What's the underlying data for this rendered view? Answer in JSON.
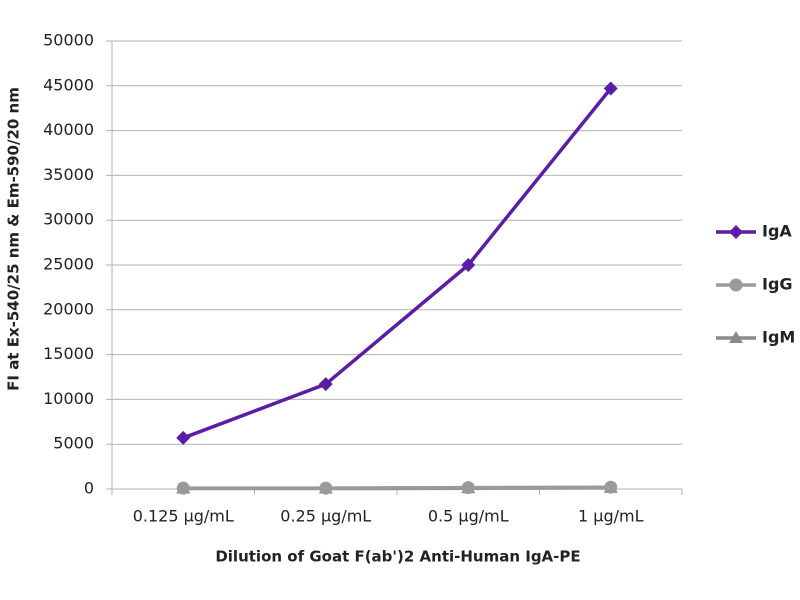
{
  "chart_data": {
    "type": "line",
    "y_label": "FI at Ex-540/25 nm & Em-590/20 nm",
    "x_label": "Dilution of Goat F(ab')2 Anti-Human IgA-PE",
    "categories": [
      "0.125 µg/mL",
      "0.25 µg/mL",
      "0.5 µg/mL",
      "1 µg/mL"
    ],
    "series": [
      {
        "name": "IgA",
        "color": "#5a1ea6",
        "marker": "diamond",
        "values": [
          5700,
          11700,
          25000,
          44700
        ]
      },
      {
        "name": "IgG",
        "color": "#9a9a9a",
        "marker": "circle",
        "values": [
          100,
          100,
          150,
          200
        ]
      },
      {
        "name": "IgM",
        "color": "#8a8a8a",
        "marker": "triangle",
        "values": [
          50,
          50,
          80,
          120
        ]
      }
    ],
    "ylim": [
      0,
      50000
    ],
    "yticks": [
      0,
      5000,
      10000,
      15000,
      20000,
      25000,
      30000,
      35000,
      40000,
      45000,
      50000
    ],
    "grid": true,
    "legend": "right"
  }
}
